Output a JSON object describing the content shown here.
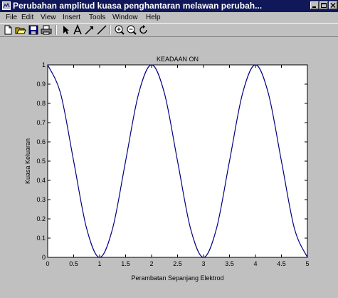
{
  "window": {
    "title": "Perubahan amplitud kuasa penghantaran melawan perubah..."
  },
  "menu": [
    {
      "label": "File",
      "name": "menu-file"
    },
    {
      "label": "Edit",
      "name": "menu-edit"
    },
    {
      "label": "View",
      "name": "menu-view"
    },
    {
      "label": "Insert",
      "name": "menu-insert"
    },
    {
      "label": "Tools",
      "name": "menu-tools"
    },
    {
      "label": "Window",
      "name": "menu-window"
    },
    {
      "label": "Help",
      "name": "menu-help"
    }
  ],
  "toolbar": [
    {
      "icon": "new-file-icon"
    },
    {
      "icon": "open-folder-icon"
    },
    {
      "icon": "save-icon"
    },
    {
      "icon": "print-icon"
    },
    {
      "icon": "select-arrow-icon"
    },
    {
      "icon": "text-icon"
    },
    {
      "icon": "arrow-icon"
    },
    {
      "icon": "line-icon"
    },
    {
      "icon": "zoom-in-icon"
    },
    {
      "icon": "zoom-out-icon"
    },
    {
      "icon": "rotate-icon"
    }
  ],
  "chart_data": {
    "type": "line",
    "title": "KEADAAN ON",
    "xlabel": "Perambatan Sepanjang Elektrod",
    "ylabel": "Kuasa Keluaran",
    "xlim": [
      0,
      5
    ],
    "ylim": [
      0,
      1
    ],
    "xticks": [
      "0",
      "0.5",
      "1",
      "1.5",
      "2",
      "2.5",
      "3",
      "3.5",
      "4",
      "4.5",
      "5"
    ],
    "yticks": [
      "0",
      "0.1",
      "0.2",
      "0.3",
      "0.4",
      "0.5",
      "0.6",
      "0.7",
      "0.8",
      "0.9",
      "1"
    ],
    "grid": false,
    "series": [
      {
        "x": [
          0,
          0.25,
          0.5,
          0.75,
          1,
          1.25,
          1.5,
          1.75,
          2,
          2.25,
          2.5,
          2.75,
          3,
          3.25,
          3.5,
          3.75,
          4,
          4.25,
          4.5,
          4.75,
          5
        ],
        "values": [
          1,
          0.85,
          0.5,
          0.15,
          0,
          0.15,
          0.5,
          0.85,
          1,
          0.85,
          0.5,
          0.15,
          0,
          0.15,
          0.5,
          0.85,
          1,
          0.85,
          0.5,
          0.15,
          0
        ],
        "color": "#000080"
      }
    ]
  }
}
